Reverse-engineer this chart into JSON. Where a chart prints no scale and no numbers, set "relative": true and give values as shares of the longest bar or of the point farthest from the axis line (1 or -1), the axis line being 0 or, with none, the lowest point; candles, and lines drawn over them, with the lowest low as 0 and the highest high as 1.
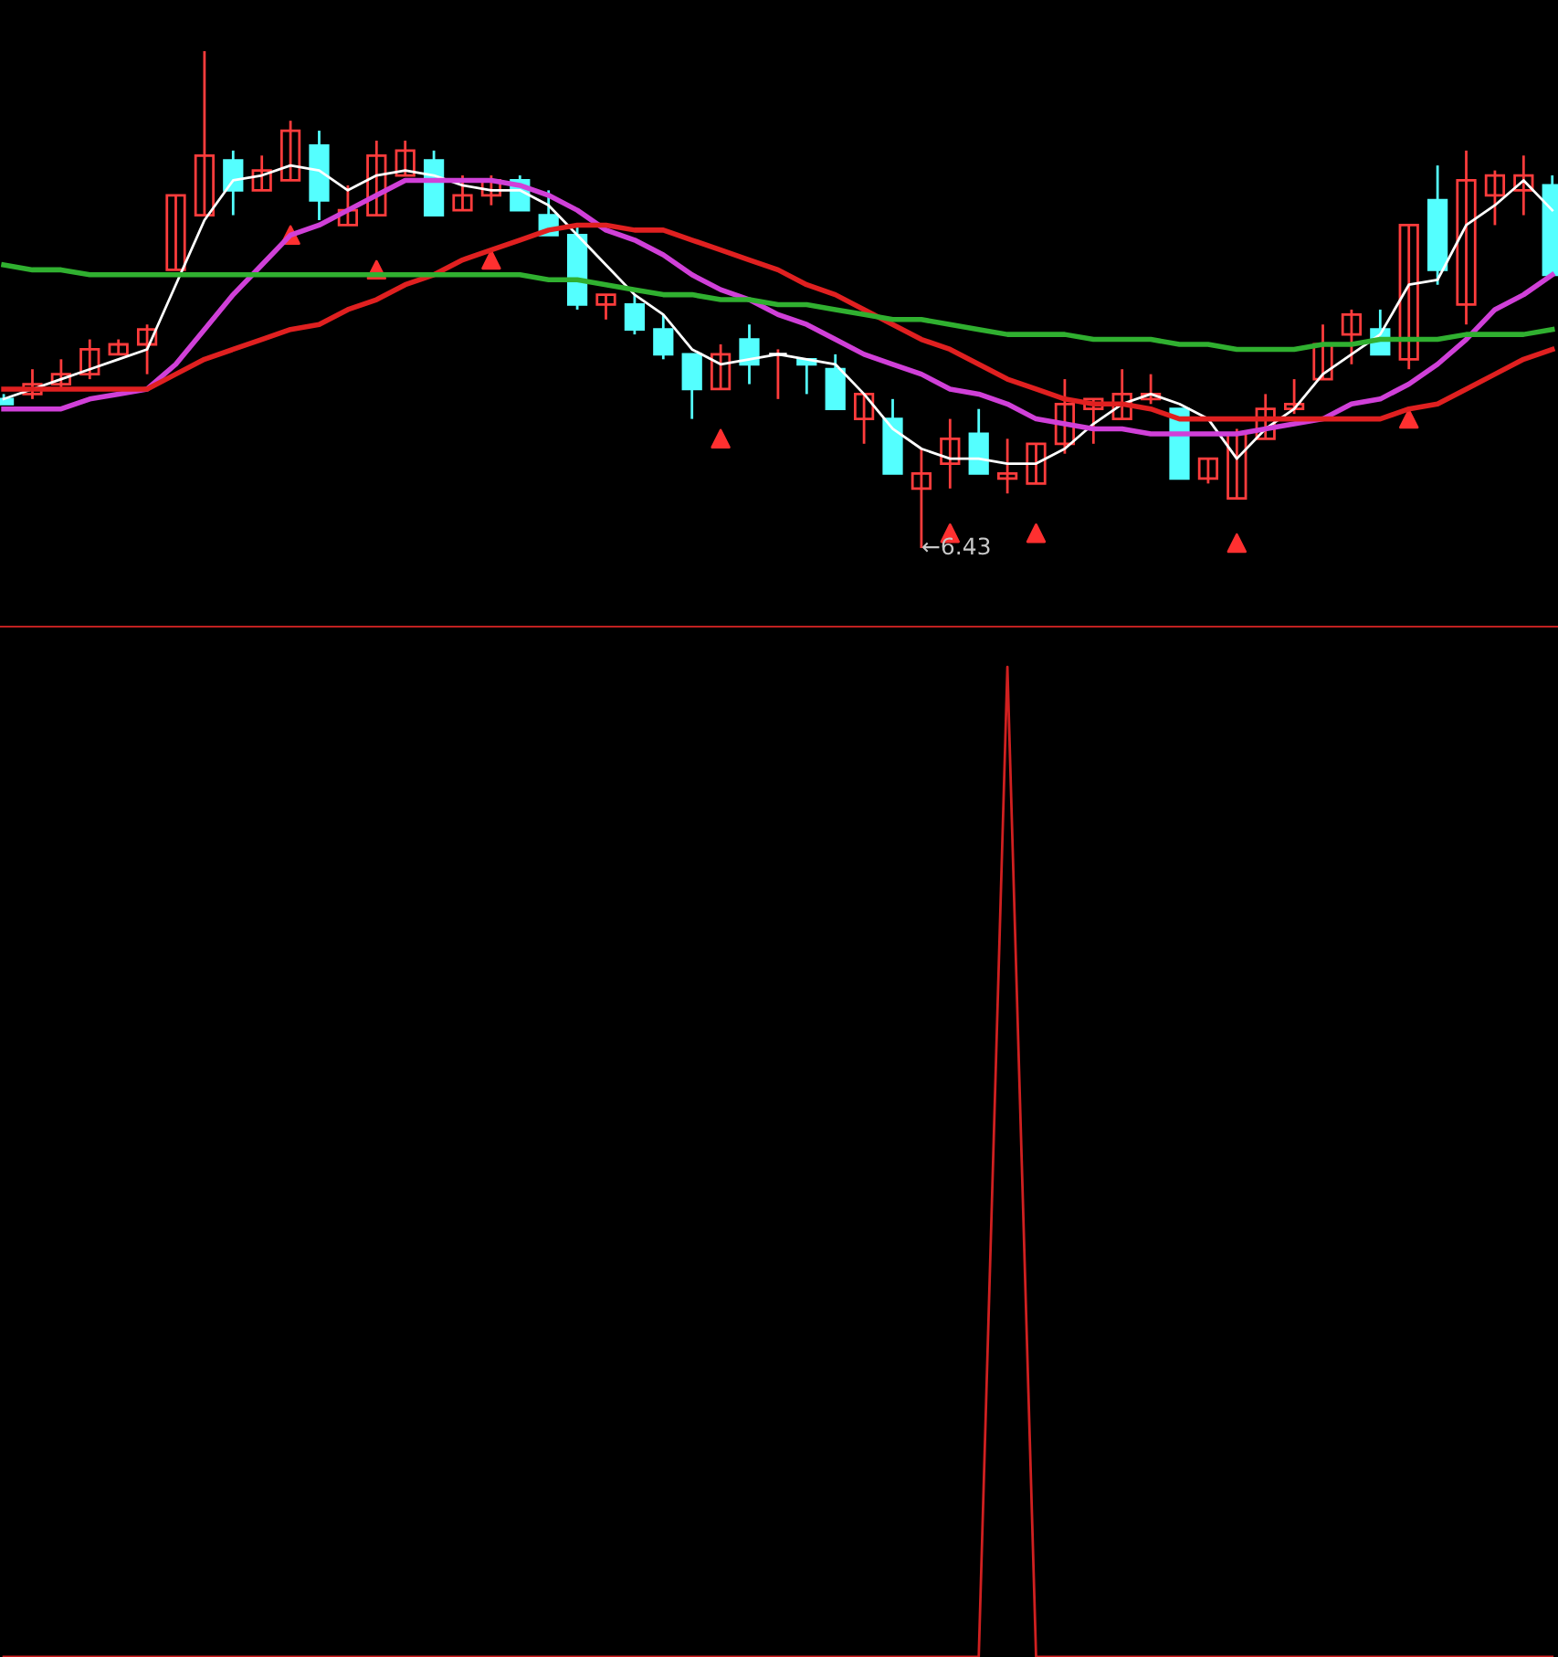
{
  "chart_data": [
    {
      "type": "candlestick",
      "relative": true,
      "categories": [
        null,
        null,
        null,
        null,
        null,
        null,
        null,
        null,
        null,
        null,
        null,
        null,
        null,
        null,
        null,
        null,
        null,
        null,
        null,
        null,
        null,
        null,
        null,
        null,
        null,
        null,
        null,
        null,
        null,
        null,
        null,
        null,
        null,
        null,
        null,
        null,
        null,
        null,
        null,
        null,
        null,
        null,
        null,
        null,
        null,
        null,
        null,
        null,
        null,
        null,
        null,
        null,
        null,
        null,
        null
      ],
      "ohlc": [
        [
          0.3,
          0.31,
          0.29,
          0.29
        ],
        [
          0.31,
          0.36,
          0.3,
          0.33
        ],
        [
          0.33,
          0.38,
          0.32,
          0.35
        ],
        [
          0.35,
          0.42,
          0.34,
          0.4
        ],
        [
          0.39,
          0.42,
          0.39,
          0.41
        ],
        [
          0.41,
          0.45,
          0.35,
          0.44
        ],
        [
          0.56,
          0.71,
          0.56,
          0.71
        ],
        [
          0.67,
          1.0,
          0.67,
          0.79
        ],
        [
          0.78,
          0.8,
          0.67,
          0.72
        ],
        [
          0.72,
          0.79,
          0.72,
          0.76
        ],
        [
          0.74,
          0.86,
          0.74,
          0.84
        ],
        [
          0.81,
          0.84,
          0.66,
          0.7
        ],
        [
          0.65,
          0.73,
          0.65,
          0.68
        ],
        [
          0.67,
          0.82,
          0.67,
          0.79
        ],
        [
          0.75,
          0.82,
          0.75,
          0.8
        ],
        [
          0.78,
          0.8,
          0.67,
          0.67
        ],
        [
          0.68,
          0.75,
          0.68,
          0.71
        ],
        [
          0.71,
          0.75,
          0.69,
          0.74
        ],
        [
          0.74,
          0.75,
          0.68,
          0.68
        ],
        [
          0.67,
          0.72,
          0.63,
          0.63
        ],
        [
          0.63,
          0.65,
          0.48,
          0.49
        ],
        [
          0.49,
          0.51,
          0.46,
          0.51
        ],
        [
          0.49,
          0.51,
          0.43,
          0.44
        ],
        [
          0.44,
          0.47,
          0.38,
          0.39
        ],
        [
          0.39,
          0.39,
          0.26,
          0.32
        ],
        [
          0.32,
          0.41,
          0.32,
          0.39
        ],
        [
          0.42,
          0.45,
          0.33,
          0.37
        ],
        [
          0.39,
          0.4,
          0.3,
          0.39
        ],
        [
          0.38,
          0.38,
          0.31,
          0.37
        ],
        [
          0.36,
          0.39,
          0.28,
          0.28
        ],
        [
          0.26,
          0.31,
          0.21,
          0.31
        ],
        [
          0.26,
          0.3,
          0.15,
          0.15
        ],
        [
          0.12,
          0.2,
          0,
          0.15
        ],
        [
          0.17,
          0.26,
          0.12,
          0.22
        ],
        [
          0.23,
          0.28,
          0.15,
          0.15
        ],
        [
          0.14,
          0.22,
          0.11,
          0.15
        ],
        [
          0.13,
          0.21,
          0.13,
          0.21
        ],
        [
          0.21,
          0.34,
          0.19,
          0.29
        ],
        [
          0.28,
          0.3,
          0.21,
          0.3
        ],
        [
          0.26,
          0.36,
          0.26,
          0.31
        ],
        [
          0.3,
          0.35,
          0.29,
          0.31
        ],
        [
          0.28,
          0.28,
          0.14,
          0.14
        ],
        [
          0.14,
          0.18,
          0.13,
          0.18
        ],
        [
          0.1,
          0.24,
          0.1,
          0.23
        ],
        [
          0.22,
          0.31,
          0.22,
          0.28
        ],
        [
          0.28,
          0.34,
          0.27,
          0.29
        ],
        [
          0.34,
          0.45,
          0.34,
          0.41
        ],
        [
          0.43,
          0.48,
          0.37,
          0.47
        ],
        [
          0.44,
          0.48,
          0.39,
          0.39
        ],
        [
          0.38,
          0.65,
          0.36,
          0.65
        ],
        [
          0.7,
          0.77,
          0.53,
          0.56
        ],
        [
          0.49,
          0.8,
          0.45,
          0.74
        ],
        [
          0.71,
          0.76,
          0.65,
          0.75
        ],
        [
          0.72,
          0.79,
          0.67,
          0.75
        ],
        [
          0.73,
          0.75,
          0.55,
          0.55
        ]
      ],
      "series": [
        {
          "type": "line",
          "color": "#ffffff",
          "values": [
            0.3,
            0.32,
            0.34,
            0.36,
            0.38,
            0.4,
            0.53,
            0.66,
            0.74,
            0.75,
            0.77,
            0.76,
            0.72,
            0.75,
            0.76,
            0.75,
            0.73,
            0.72,
            0.72,
            0.69,
            0.63,
            0.57,
            0.51,
            0.47,
            0.4,
            0.37,
            0.38,
            0.39,
            0.38,
            0.37,
            0.31,
            0.24,
            0.2,
            0.18,
            0.18,
            0.17,
            0.17,
            0.2,
            0.25,
            0.29,
            0.31,
            0.29,
            0.26,
            0.18,
            0.24,
            0.28,
            0.35,
            0.39,
            0.43,
            0.53,
            0.54,
            0.65,
            0.69,
            0.74,
            0.68
          ]
        },
        {
          "type": "line",
          "color": "#d040d8",
          "values": [
            0.28,
            0.28,
            0.28,
            0.3,
            0.31,
            0.32,
            0.37,
            0.44,
            0.51,
            0.57,
            0.63,
            0.65,
            0.68,
            0.71,
            0.74,
            0.74,
            0.74,
            0.74,
            0.73,
            0.71,
            0.68,
            0.64,
            0.62,
            0.59,
            0.55,
            0.52,
            0.5,
            0.47,
            0.45,
            0.42,
            0.39,
            0.37,
            0.35,
            0.32,
            0.31,
            0.29,
            0.26,
            0.25,
            0.24,
            0.24,
            0.23,
            0.23,
            0.23,
            0.23,
            0.24,
            0.25,
            0.26,
            0.29,
            0.3,
            0.33,
            0.37,
            0.42,
            0.48,
            0.51,
            0.55
          ]
        },
        {
          "type": "line",
          "color": "#e02020",
          "values": [
            0.32,
            0.32,
            0.32,
            0.32,
            0.32,
            0.32,
            0.35,
            0.38,
            0.4,
            0.42,
            0.44,
            0.45,
            0.48,
            0.5,
            0.53,
            0.55,
            0.58,
            0.6,
            0.62,
            0.64,
            0.65,
            0.65,
            0.64,
            0.64,
            0.62,
            0.6,
            0.58,
            0.56,
            0.53,
            0.51,
            0.48,
            0.45,
            0.42,
            0.4,
            0.37,
            0.34,
            0.32,
            0.3,
            0.29,
            0.29,
            0.28,
            0.26,
            0.26,
            0.26,
            0.26,
            0.26,
            0.26,
            0.26,
            0.26,
            0.28,
            0.29,
            0.32,
            0.35,
            0.38,
            0.4
          ]
        },
        {
          "type": "line",
          "color": "#30b030",
          "values": [
            0.57,
            0.56,
            0.56,
            0.55,
            0.55,
            0.55,
            0.55,
            0.55,
            0.55,
            0.55,
            0.55,
            0.55,
            0.55,
            0.55,
            0.55,
            0.55,
            0.55,
            0.55,
            0.55,
            0.54,
            0.54,
            0.53,
            0.52,
            0.51,
            0.51,
            0.5,
            0.5,
            0.49,
            0.49,
            0.48,
            0.47,
            0.46,
            0.46,
            0.45,
            0.44,
            0.43,
            0.43,
            0.43,
            0.42,
            0.42,
            0.42,
            0.41,
            0.41,
            0.4,
            0.4,
            0.4,
            0.41,
            0.41,
            0.42,
            0.42,
            0.42,
            0.43,
            0.43,
            0.43,
            0.44
          ]
        },
        {
          "type": "scatter",
          "color": "#ff3030",
          "marker": "triangle",
          "values": [
            null,
            null,
            null,
            null,
            null,
            null,
            null,
            null,
            null,
            null,
            0.63,
            null,
            null,
            0.56,
            null,
            null,
            null,
            0.58,
            null,
            null,
            null,
            null,
            null,
            null,
            null,
            0.22,
            null,
            null,
            null,
            null,
            null,
            null,
            null,
            0.03,
            null,
            null,
            0.03,
            null,
            null,
            null,
            null,
            null,
            null,
            0.01,
            null,
            null,
            null,
            null,
            null,
            0.26,
            null,
            null,
            null,
            null,
            null
          ]
        }
      ],
      "annotations": [
        {
          "text": "←6.43",
          "y": 0
        }
      ]
    },
    {
      "type": "line",
      "relative": true,
      "color": "#d02020",
      "categories": [
        null,
        null,
        null,
        null,
        null,
        null,
        null,
        null,
        null,
        null,
        null,
        null,
        null,
        null,
        null,
        null,
        null,
        null,
        null,
        null,
        null,
        null,
        null,
        null,
        null,
        null,
        null,
        null,
        null,
        null,
        null,
        null,
        null,
        null,
        null,
        null,
        null,
        null,
        null,
        null,
        null,
        null,
        null,
        null,
        null,
        null,
        null,
        null,
        null,
        null,
        null,
        null,
        null,
        null,
        null
      ],
      "values": [
        0,
        0,
        0,
        0,
        0,
        0,
        0,
        0,
        0,
        0,
        0,
        0,
        0,
        0,
        0,
        0,
        0,
        0,
        0,
        0,
        0,
        0,
        0,
        0,
        0,
        0,
        0,
        0,
        0,
        0,
        0,
        0,
        0,
        0,
        0,
        1,
        0,
        0,
        0,
        0,
        0,
        0,
        0,
        0,
        0,
        0,
        0,
        0,
        0,
        0,
        0,
        0,
        0,
        0,
        0
      ]
    }
  ]
}
